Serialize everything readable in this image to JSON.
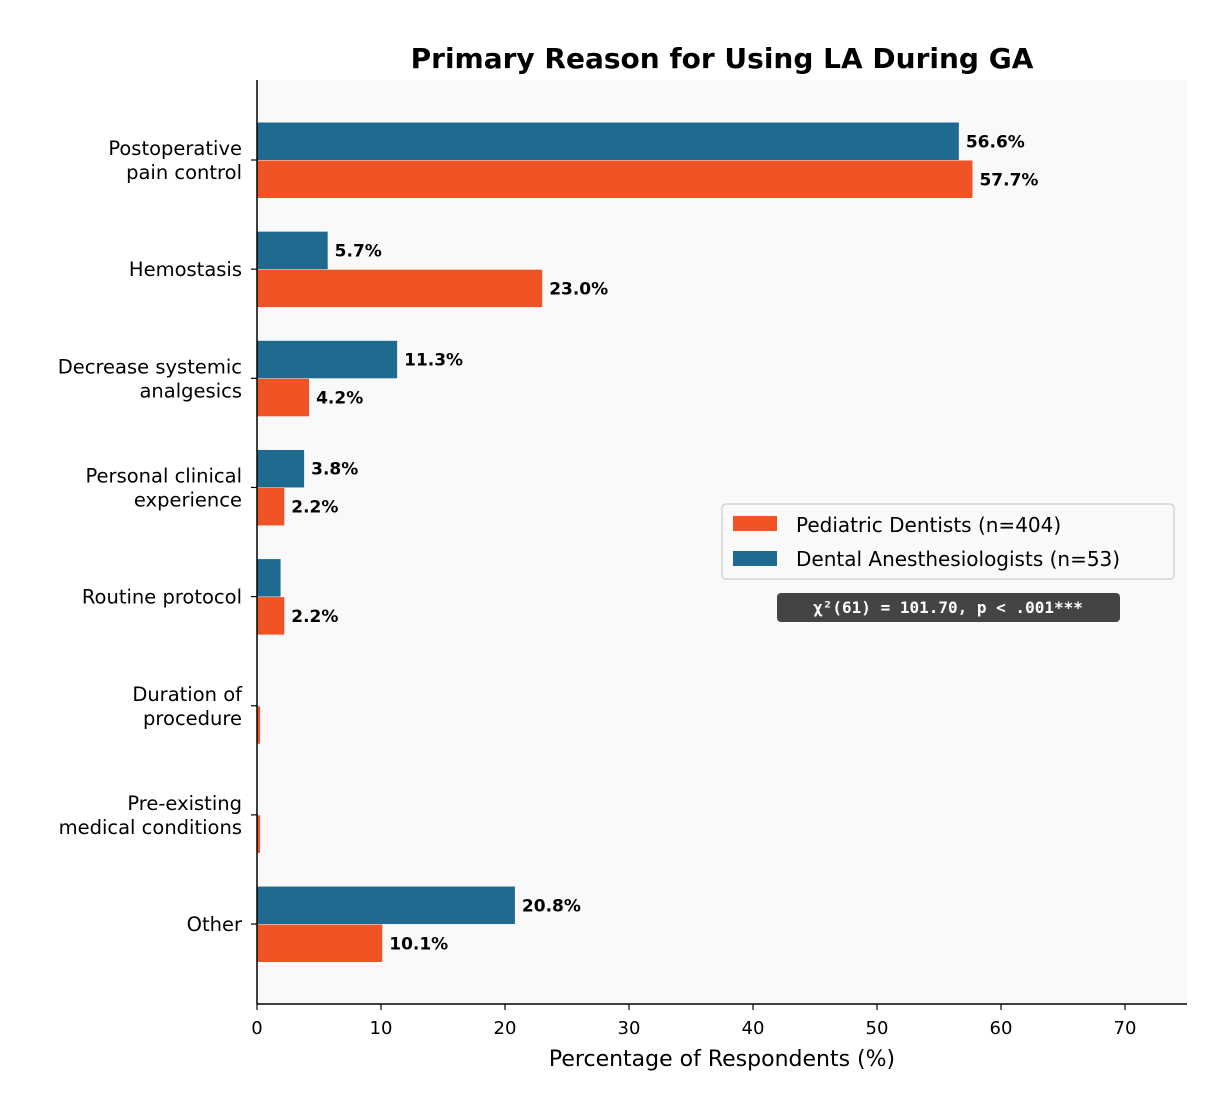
{
  "chart_data": {
    "type": "bar",
    "orientation": "horizontal",
    "title": "Primary Reason for Using LA During GA",
    "xlabel": "Percentage of Respondents (%)",
    "ylabel": "",
    "xlim": [
      0,
      75
    ],
    "xticks": [
      0,
      10,
      20,
      30,
      40,
      50,
      60,
      70
    ],
    "grid": false,
    "categories": [
      "Postoperative\npain control",
      "Hemostasis",
      "Decrease systemic\nanalgesics",
      "Personal clinical\nexperience",
      "Routine protocol",
      "Duration of\nprocedure",
      "Pre-existing\nmedical conditions",
      "Other"
    ],
    "series": [
      {
        "name": "Pediatric Dentists (n=404)",
        "color": "#f05324",
        "values": [
          57.7,
          23.0,
          4.2,
          2.2,
          2.2,
          0.25,
          0.25,
          10.1
        ],
        "labels": [
          "57.7%",
          "23.0%",
          "4.2%",
          "2.2%",
          "2.2%",
          "",
          "",
          "10.1%"
        ]
      },
      {
        "name": "Dental Anesthesiologists (n=53)",
        "color": "#1f6a91",
        "values": [
          56.6,
          5.7,
          11.3,
          3.8,
          1.9,
          0,
          0,
          20.8
        ],
        "labels": [
          "56.6%",
          "5.7%",
          "11.3%",
          "3.8%",
          "",
          "",
          "",
          "20.8%"
        ]
      }
    ],
    "legend_position": "center-right",
    "annotation": "χ²(61) = 101.70, p < .001***",
    "plot_background": "#f9f9f9"
  }
}
